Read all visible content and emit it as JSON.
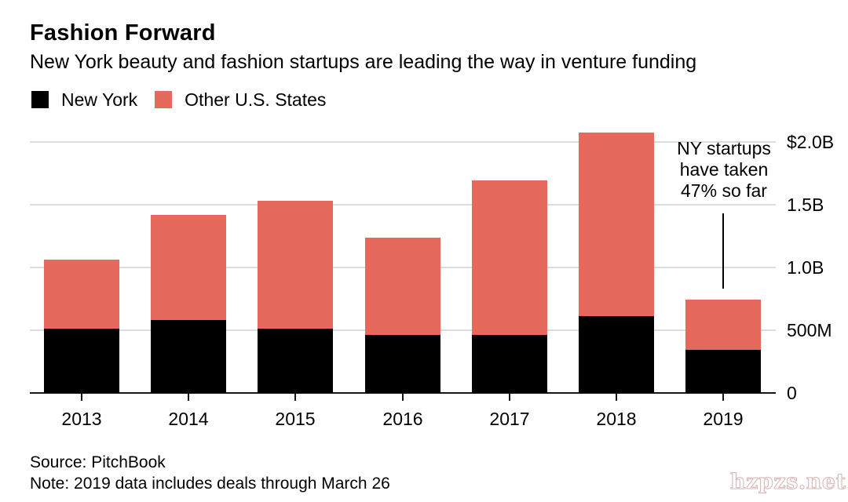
{
  "chart_data": {
    "type": "bar",
    "stacked": true,
    "title": "Fashion Forward",
    "subtitle": "New York beauty and fashion startups are leading the way in venture funding",
    "unit": "USD millions",
    "categories": [
      "2013",
      "2014",
      "2015",
      "2016",
      "2017",
      "2018",
      "2019"
    ],
    "series": [
      {
        "name": "New York",
        "color": "#000000",
        "values": [
          515,
          580,
          510,
          465,
          465,
          615,
          345
        ]
      },
      {
        "name": "Other U.S. States",
        "color": "#e5695d",
        "values": [
          550,
          840,
          1020,
          775,
          1230,
          1460,
          400
        ]
      }
    ],
    "totals": [
      1065,
      1420,
      1530,
      1240,
      1695,
      2075,
      745
    ],
    "ylim": [
      0,
      2000
    ],
    "yticks": [
      {
        "value": 2000,
        "label": "$2.0B"
      },
      {
        "value": 1500,
        "label": "1.5B"
      },
      {
        "value": 1000,
        "label": "1.0B"
      },
      {
        "value": 500,
        "label": "500M"
      },
      {
        "value": 0,
        "label": "0"
      }
    ],
    "y_axis_side": "right",
    "grid": "horizontal",
    "legend_position": "top-left",
    "annotation": {
      "text": "NY startups\nhave taken\n47% so far",
      "target_category": "2019"
    }
  },
  "footer": {
    "source": "Source: PitchBook",
    "note": "Note: 2019 data includes deals through March 26"
  },
  "watermark": {
    "text": "hzpzs.net"
  }
}
